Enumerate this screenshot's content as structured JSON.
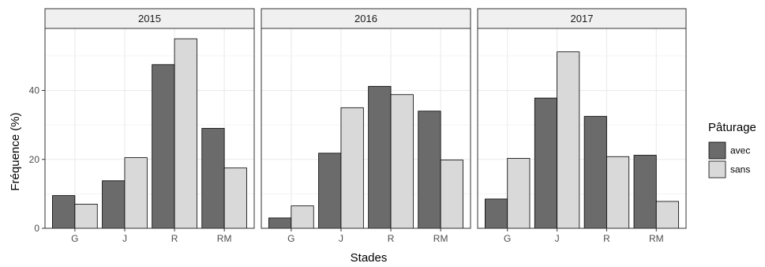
{
  "chart_data": {
    "type": "bar",
    "xlabel": "Stades",
    "ylabel": "Fréquence (%)",
    "categories": [
      "G",
      "J",
      "R",
      "RM"
    ],
    "ylim": [
      0,
      58
    ],
    "yticks": [
      0,
      20,
      40
    ],
    "grid": true,
    "legend": {
      "title": "Pâturage",
      "placement": "right"
    },
    "series": [
      {
        "name": "avec",
        "color": "#6b6b6b"
      },
      {
        "name": "sans",
        "color": "#d9d9d9"
      }
    ],
    "panels": [
      {
        "title": "2015",
        "values": {
          "avec": [
            9.5,
            13.8,
            47.5,
            29.0
          ],
          "sans": [
            7.0,
            20.5,
            55.0,
            17.5
          ]
        }
      },
      {
        "title": "2016",
        "values": {
          "avec": [
            3.0,
            21.8,
            41.2,
            34.0
          ],
          "sans": [
            6.5,
            35.0,
            38.8,
            19.8
          ]
        }
      },
      {
        "title": "2017",
        "values": {
          "avec": [
            8.5,
            37.8,
            32.5,
            21.2
          ],
          "sans": [
            20.3,
            51.2,
            20.8,
            7.8
          ]
        }
      }
    ]
  }
}
